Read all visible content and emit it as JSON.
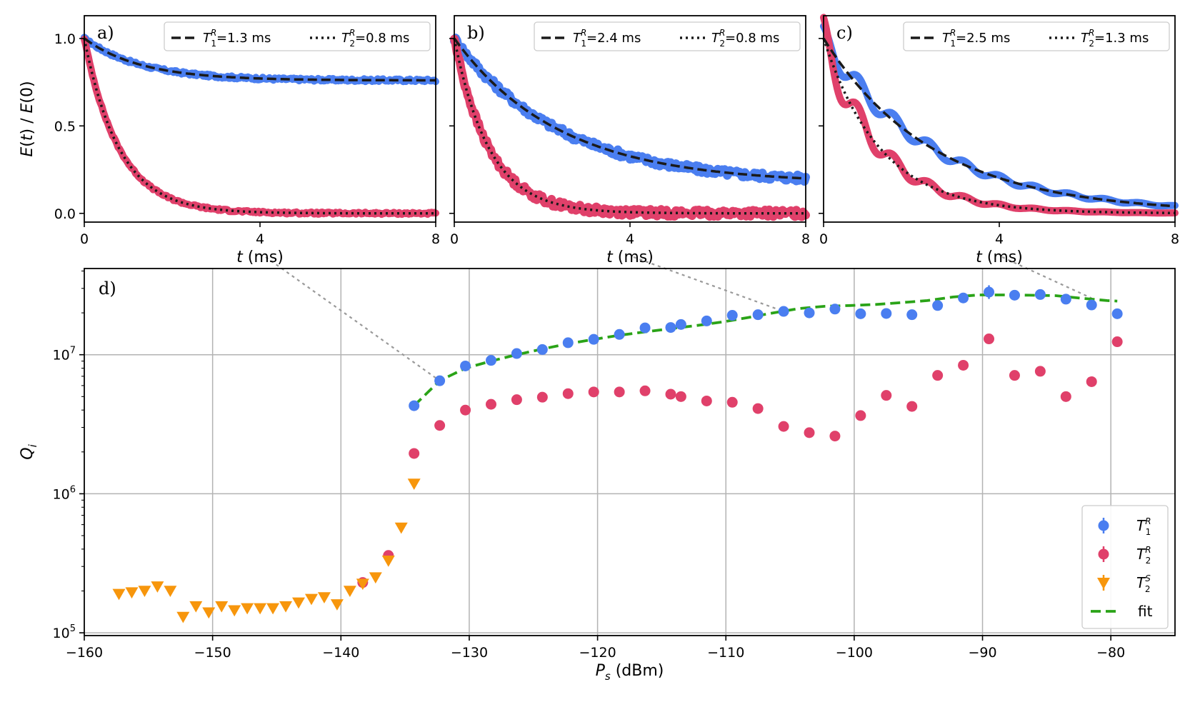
{
  "colors": {
    "t1": "#4a7ef0",
    "t2": "#e0406a",
    "t2s": "#f7960c",
    "fit": "#2aa317",
    "curve": "#1a1a1a",
    "grid": "#b3b3b3",
    "connector": "#999999"
  },
  "chart_data": [
    {
      "id": "a",
      "type": "line",
      "panel_label": "a)",
      "xlabel_var": "t",
      "xlabel_unit": " (ms)",
      "ylabel": "E(t) / E(0)",
      "xlim": [
        0,
        8
      ],
      "ylim": [
        -0.05,
        1.13
      ],
      "xticks": [
        0,
        4,
        8
      ],
      "xtick_labels": [
        "0",
        "4",
        "8"
      ],
      "yticks": [
        0.0,
        0.5,
        1.0
      ],
      "ytick_labels": [
        "0.0",
        "0.5",
        "1.0"
      ],
      "legend": [
        {
          "style": "dashed",
          "sym": "T",
          "sub": "1",
          "sup": "R",
          "value": "=1.3 ms"
        },
        {
          "style": "dotted",
          "sym": "T",
          "sub": "2",
          "sup": "R",
          "value": "=0.8 ms"
        }
      ],
      "series": [
        {
          "name": "T1 data",
          "kind": "decay",
          "T": 1.3,
          "offset": 0.76,
          "osc_amp": 0,
          "osc_period": 0,
          "noise": 0.008
        },
        {
          "name": "T2 data",
          "kind": "decay",
          "T": 0.8,
          "offset": 0.0,
          "osc_amp": 0,
          "osc_period": 0,
          "noise": 0.006
        }
      ],
      "fits": [
        {
          "name": "T1 fit",
          "style": "dashed",
          "T": 1.3,
          "offset": 0.76
        },
        {
          "name": "T2 fit",
          "style": "dotted",
          "T": 0.8,
          "offset": 0.0
        }
      ]
    },
    {
      "id": "b",
      "type": "line",
      "panel_label": "b)",
      "xlabel_var": "t",
      "xlabel_unit": " (ms)",
      "xlim": [
        0,
        8
      ],
      "ylim": [
        -0.05,
        1.13
      ],
      "xticks": [
        0,
        4,
        8
      ],
      "xtick_labels": [
        "0",
        "4",
        "8"
      ],
      "yticks": [
        0.0,
        0.5,
        1.0
      ],
      "legend": [
        {
          "style": "dashed",
          "sym": "T",
          "sub": "1",
          "sup": "R",
          "value": "=2.4 ms"
        },
        {
          "style": "dotted",
          "sym": "T",
          "sub": "2",
          "sup": "R",
          "value": "=0.8 ms"
        }
      ],
      "series": [
        {
          "name": "T1 data",
          "kind": "decay",
          "T": 2.4,
          "offset": 0.17,
          "osc_amp": 0,
          "osc_period": 0,
          "noise": 0.02
        },
        {
          "name": "T2 data",
          "kind": "decay",
          "T": 0.8,
          "offset": 0.0,
          "osc_amp": 0,
          "osc_period": 0,
          "noise": 0.02
        }
      ],
      "fits": [
        {
          "name": "T1 fit",
          "style": "dashed",
          "T": 2.4,
          "offset": 0.17
        },
        {
          "name": "T2 fit",
          "style": "dotted",
          "T": 0.8,
          "offset": 0.0
        }
      ]
    },
    {
      "id": "c",
      "type": "line",
      "panel_label": "c)",
      "xlabel_var": "t",
      "xlabel_unit": " (ms)",
      "xlim": [
        0,
        8
      ],
      "ylim": [
        -0.05,
        1.13
      ],
      "xticks": [
        0,
        4,
        8
      ],
      "xtick_labels": [
        "0",
        "4",
        "8"
      ],
      "yticks": [
        0.0,
        0.5,
        1.0
      ],
      "legend": [
        {
          "style": "dashed",
          "sym": "T",
          "sub": "1",
          "sup": "R",
          "value": "=2.5 ms"
        },
        {
          "style": "dotted",
          "sym": "T",
          "sub": "2",
          "sup": "R",
          "value": "=1.3 ms"
        }
      ],
      "series": [
        {
          "name": "T1 data",
          "kind": "decay",
          "T": 2.5,
          "offset": 0.0,
          "osc_amp": 0.07,
          "osc_period": 0.8,
          "noise": 0
        },
        {
          "name": "T2 data",
          "kind": "decay",
          "T": 1.3,
          "offset": 0.0,
          "osc_amp": 0.12,
          "osc_period": 0.8,
          "noise": 0
        }
      ],
      "fits": [
        {
          "name": "T1 fit",
          "style": "dashed",
          "T": 2.5,
          "offset": 0.0
        },
        {
          "name": "T2 fit",
          "style": "dotted",
          "T": 1.3,
          "offset": 0.0
        }
      ]
    },
    {
      "id": "d",
      "type": "scatter",
      "panel_label": "d)",
      "xlabel_var": "P",
      "xlabel_sub": "s",
      "xlabel_unit": " (dBm)",
      "ylabel_var": "Q",
      "ylabel_sub": "i",
      "yscale": "log",
      "xlim": [
        -160,
        -75
      ],
      "ylim_log10": [
        4.98,
        7.62
      ],
      "xticks": [
        -160,
        -150,
        -140,
        -130,
        -120,
        -110,
        -100,
        -90,
        -80
      ],
      "xtick_labels": [
        "−160",
        "−150",
        "−140",
        "−130",
        "−120",
        "−110",
        "−100",
        "−90",
        "−80"
      ],
      "yticks_exp": [
        5,
        6,
        7
      ],
      "ytick_base": "10",
      "grid": true,
      "legend_position": "bottom-right",
      "legend": [
        {
          "kind": "circle",
          "color_key": "t1",
          "sym": "T",
          "sub": "1",
          "sup": "R"
        },
        {
          "kind": "circle",
          "color_key": "t2",
          "sym": "T",
          "sub": "2",
          "sup": "R"
        },
        {
          "kind": "triangle",
          "color_key": "t2s",
          "sym": "T",
          "sub": "2",
          "sup": "S"
        },
        {
          "kind": "dash",
          "color_key": "fit",
          "text": "fit"
        }
      ],
      "series": [
        {
          "name": "T1R",
          "marker": "circle",
          "color_key": "t1",
          "x": [
            -134.3,
            -132.3,
            -130.3,
            -128.3,
            -126.3,
            -124.3,
            -122.3,
            -120.3,
            -118.3,
            -116.3,
            -114.3,
            -113.5,
            -111.5,
            -109.5,
            -107.5,
            -105.5,
            -103.5,
            -101.5,
            -99.5,
            -97.5,
            -95.5,
            -93.5,
            -91.5,
            -89.5,
            -87.5,
            -85.5,
            -83.5,
            -81.5,
            -79.5
          ],
          "y": [
            4300000.0,
            6500000.0,
            8300000.0,
            9100000.0,
            10200000.0,
            10900000.0,
            12200000.0,
            12900000.0,
            14000000.0,
            15600000.0,
            15700000.0,
            16500000.0,
            17500000.0,
            19200000.0,
            19400000.0,
            20500000.0,
            20000000.0,
            21300000.0,
            19700000.0,
            19800000.0,
            19400000.0,
            22600000.0,
            25600000.0,
            28200000.0,
            26800000.0,
            27100000.0,
            25100000.0,
            22800000.0,
            19700000.0
          ]
        },
        {
          "name": "T2R",
          "marker": "circle",
          "color_key": "t2",
          "x": [
            -138.3,
            -136.3,
            -134.3,
            -132.3,
            -130.3,
            -128.3,
            -126.3,
            -124.3,
            -122.3,
            -120.3,
            -118.3,
            -116.3,
            -114.3,
            -113.5,
            -111.5,
            -109.5,
            -107.5,
            -105.5,
            -103.5,
            -101.5,
            -99.5,
            -97.5,
            -95.5,
            -93.5,
            -91.5,
            -89.5,
            -87.5,
            -85.5,
            -83.5,
            -81.5,
            -79.5
          ],
          "y": [
            230000.0,
            360000.0,
            1950000.0,
            3100000.0,
            4000000.0,
            4400000.0,
            4750000.0,
            4950000.0,
            5250000.0,
            5400000.0,
            5400000.0,
            5500000.0,
            5200000.0,
            5000000.0,
            4650000.0,
            4550000.0,
            4100000.0,
            3050000.0,
            2750000.0,
            2600000.0,
            3650000.0,
            5100000.0,
            4250000.0,
            7100000.0,
            8400000.0,
            13000000.0,
            7100000.0,
            7600000.0,
            5000000.0,
            6400000.0,
            12400000.0
          ]
        },
        {
          "name": "T2S",
          "marker": "triangle-down",
          "color_key": "t2s",
          "x": [
            -157.3,
            -156.3,
            -155.3,
            -154.3,
            -153.3,
            -152.3,
            -151.3,
            -150.3,
            -149.3,
            -148.3,
            -147.3,
            -146.3,
            -145.3,
            -144.3,
            -143.3,
            -142.3,
            -141.3,
            -140.3,
            -139.3,
            -138.3,
            -137.3,
            -136.3,
            -135.3,
            -134.3
          ],
          "y": [
            190000.0,
            195000.0,
            200000.0,
            215000.0,
            200000.0,
            130000.0,
            155000.0,
            140000.0,
            155000.0,
            145000.0,
            150000.0,
            150000.0,
            150000.0,
            155000.0,
            165000.0,
            175000.0,
            180000.0,
            160000.0,
            200000.0,
            225000.0,
            250000.0,
            330000.0,
            570000.0,
            1180000.0
          ]
        },
        {
          "name": "fit",
          "marker": "dashed-line",
          "color_key": "fit",
          "x": [
            -134.3,
            -132.3,
            -130.3,
            -128.3,
            -126.3,
            -124.3,
            -122.3,
            -120.3,
            -118.3,
            -116.3,
            -114.3,
            -112.3,
            -110.3,
            -108.3,
            -106.3,
            -104.3,
            -102.3,
            -100.3,
            -98.3,
            -96.3,
            -94.3,
            -92.3,
            -90.3,
            -88.3,
            -86.3,
            -84.3,
            -82.3,
            -80.3,
            -79.5
          ],
          "y": [
            4300000.0,
            6500000.0,
            8000000.0,
            9000000.0,
            10000000.0,
            11000000.0,
            12000000.0,
            12900000.0,
            13800000.0,
            14600000.0,
            15400000.0,
            16200000.0,
            17200000.0,
            18500000.0,
            20000000.0,
            21500000.0,
            22300000.0,
            22600000.0,
            23000000.0,
            23700000.0,
            24500000.0,
            26000000.0,
            26900000.0,
            26900000.0,
            26800000.0,
            26600000.0,
            25500000.0,
            24500000.0,
            24300000.0
          ]
        }
      ],
      "connectors": [
        {
          "from_panel": "a",
          "to_x": -132.3,
          "to_y": 6500000.0
        },
        {
          "from_panel": "b",
          "to_x": -105.5,
          "to_y": 20500000.0
        },
        {
          "from_panel": "c",
          "to_x": -81.5,
          "to_y": 25500000.0
        }
      ]
    }
  ]
}
